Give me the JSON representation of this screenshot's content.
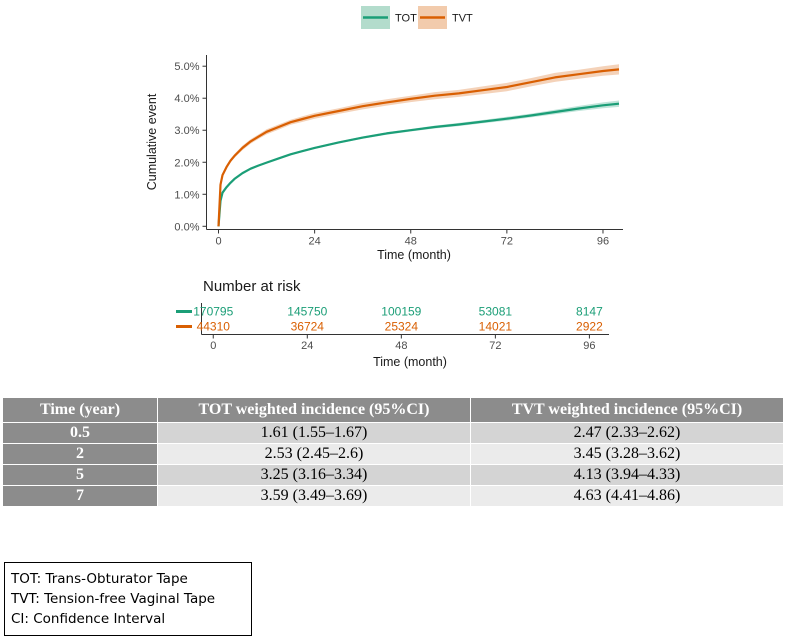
{
  "chart_data": {
    "type": "line",
    "title": "",
    "xlabel": "Time (month)",
    "ylabel": "Cumulative event",
    "xlim": [
      -3,
      101
    ],
    "ylim": [
      -0.1,
      5.35
    ],
    "x_ticks": [
      "0",
      "24",
      "48",
      "72",
      "96"
    ],
    "x_tick_values": [
      0,
      24,
      48,
      72,
      96
    ],
    "y_ticks": [
      "0.0%",
      "1.0%",
      "2.0%",
      "3.0%",
      "4.0%",
      "5.0%"
    ],
    "y_tick_values": [
      0,
      1,
      2,
      3,
      4,
      5
    ],
    "legend": {
      "position": "top",
      "entries": [
        "TOT",
        "TVT"
      ]
    },
    "series": [
      {
        "name": "TOT",
        "color": "#1b9e77",
        "x": [
          0,
          0.5,
          1,
          2,
          3,
          4,
          6,
          8,
          10,
          12,
          15,
          18,
          21,
          24,
          30,
          36,
          42,
          48,
          54,
          60,
          66,
          72,
          78,
          84,
          90,
          96,
          100
        ],
        "y": [
          0,
          0.8,
          1.05,
          1.22,
          1.36,
          1.48,
          1.66,
          1.8,
          1.9,
          1.99,
          2.12,
          2.25,
          2.35,
          2.45,
          2.62,
          2.77,
          2.9,
          3.0,
          3.1,
          3.18,
          3.27,
          3.36,
          3.46,
          3.57,
          3.68,
          3.78,
          3.83
        ],
        "ci_halfwidth": [
          0,
          0.03,
          0.03,
          0.03,
          0.03,
          0.03,
          0.03,
          0.03,
          0.03,
          0.03,
          0.03,
          0.03,
          0.03,
          0.03,
          0.03,
          0.035,
          0.04,
          0.04,
          0.045,
          0.05,
          0.05,
          0.06,
          0.06,
          0.07,
          0.08,
          0.09,
          0.1
        ]
      },
      {
        "name": "TVT",
        "color": "#d95f02",
        "x": [
          0,
          0.5,
          1,
          2,
          3,
          4,
          6,
          8,
          10,
          12,
          15,
          18,
          21,
          24,
          30,
          36,
          42,
          48,
          54,
          60,
          66,
          72,
          78,
          84,
          90,
          96,
          100
        ],
        "y": [
          0,
          1.3,
          1.6,
          1.85,
          2.05,
          2.2,
          2.45,
          2.65,
          2.8,
          2.95,
          3.1,
          3.25,
          3.35,
          3.45,
          3.6,
          3.75,
          3.87,
          3.98,
          4.08,
          4.15,
          4.25,
          4.35,
          4.5,
          4.65,
          4.75,
          4.85,
          4.9
        ],
        "ci_halfwidth": [
          0,
          0.05,
          0.05,
          0.06,
          0.06,
          0.06,
          0.07,
          0.07,
          0.07,
          0.08,
          0.08,
          0.08,
          0.09,
          0.09,
          0.09,
          0.1,
          0.1,
          0.1,
          0.11,
          0.11,
          0.12,
          0.13,
          0.13,
          0.14,
          0.14,
          0.15,
          0.16
        ]
      }
    ],
    "risk_table": {
      "title": "Number at risk",
      "xlabel": "Time (month)",
      "x_ticks": [
        "0",
        "24",
        "48",
        "72",
        "96"
      ],
      "rows": [
        {
          "name": "TOT",
          "color": "#1b9e77",
          "counts": [
            "170795",
            "145750",
            "100159",
            "53081",
            "8147"
          ]
        },
        {
          "name": "TVT",
          "color": "#d95f02",
          "counts": [
            "44310",
            "36724",
            "25324",
            "14021",
            "2922"
          ]
        }
      ]
    }
  },
  "table": {
    "headers": [
      "Time (year)",
      "TOT weighted incidence (95%CI)",
      "TVT weighted incidence (95%CI)"
    ],
    "rows": [
      [
        "0.5",
        "1.61 (1.55–1.67)",
        "2.47 (2.33–2.62)"
      ],
      [
        "2",
        "2.53 (2.45–2.6)",
        "3.45 (3.28–3.62)"
      ],
      [
        "5",
        "3.25 (3.16–3.34)",
        "4.13 (3.94–4.33)"
      ],
      [
        "7",
        "3.59 (3.49–3.69)",
        "4.63 (4.41–4.86)"
      ]
    ]
  },
  "abbreviations": [
    "TOT: Trans-Obturator Tape",
    "TVT: Tension-free Vaginal Tape",
    "CI: Confidence Interval"
  ]
}
